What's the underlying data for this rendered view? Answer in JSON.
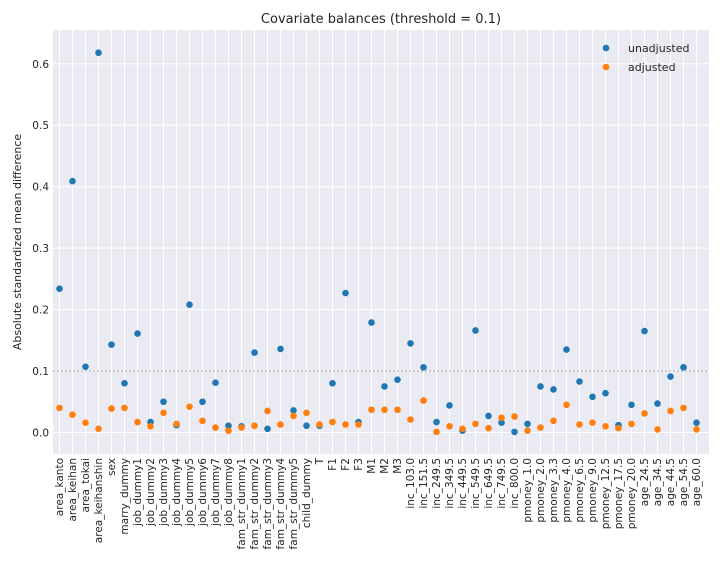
{
  "chart_data": {
    "type": "scatter",
    "title": "Covariate balances (threshold = 0.1)",
    "xlabel": "",
    "ylabel": "Absolute standardized mean difference",
    "ylim": [
      -0.035,
      0.655
    ],
    "yticks": [
      0.0,
      0.1,
      0.2,
      0.3,
      0.4,
      0.5,
      0.6
    ],
    "ytick_labels": [
      "0.0",
      "0.1",
      "0.2",
      "0.3",
      "0.4",
      "0.5",
      "0.6"
    ],
    "threshold": 0.1,
    "grid": true,
    "legend_position": "top-right",
    "categories": [
      "area_kanto",
      "area_keihan",
      "area_tokai",
      "area_keihanshin",
      "sex",
      "marry_dummy",
      "job_dummy1",
      "job_dummy2",
      "job_dummy3",
      "job_dummy4",
      "job_dummy5",
      "job_dummy6",
      "job_dummy7",
      "job_dummy8",
      "fam_str_dummy1",
      "fam_str_dummy2",
      "fam_str_dummy3",
      "fam_str_dummy4",
      "fam_str_dummy5",
      "child_dummy",
      "T",
      "F1",
      "F2",
      "F3",
      "M1",
      "M2",
      "M3",
      "inc_103.0",
      "inc_151.5",
      "inc_249.5",
      "inc_349.5",
      "inc_449.5",
      "inc_549.5",
      "inc_649.5",
      "inc_749.5",
      "inc_800.0",
      "pmoney_1.0",
      "pmoney_2.0",
      "pmoney_3.3",
      "pmoney_4.0",
      "pmoney_6.5",
      "pmoney_9.0",
      "pmoney_12.5",
      "pmoney_17.5",
      "pmoney_20.0",
      "age_24.5",
      "age_34.5",
      "age_44.5",
      "age_54.5",
      "age_60.0"
    ],
    "series": [
      {
        "name": "unadjusted",
        "color": "#1f77b4",
        "values": [
          0.234,
          0.409,
          0.107,
          0.618,
          0.143,
          0.08,
          0.161,
          0.017,
          0.05,
          0.012,
          0.208,
          0.05,
          0.081,
          0.011,
          0.01,
          0.13,
          0.006,
          0.136,
          0.036,
          0.011,
          0.011,
          0.08,
          0.227,
          0.017,
          0.179,
          0.075,
          0.086,
          0.145,
          0.106,
          0.017,
          0.044,
          0.003,
          0.166,
          0.027,
          0.016,
          0.001,
          0.014,
          0.075,
          0.07,
          0.135,
          0.083,
          0.058,
          0.064,
          0.012,
          0.045,
          0.165,
          0.047,
          0.091,
          0.106,
          0.016
        ]
      },
      {
        "name": "adjusted",
        "color": "#ff7f0e",
        "values": [
          0.04,
          0.029,
          0.016,
          0.006,
          0.039,
          0.04,
          0.017,
          0.01,
          0.032,
          0.014,
          0.042,
          0.019,
          0.008,
          0.003,
          0.008,
          0.011,
          0.035,
          0.013,
          0.027,
          0.032,
          0.013,
          0.017,
          0.013,
          0.013,
          0.037,
          0.037,
          0.037,
          0.021,
          0.052,
          0.001,
          0.01,
          0.006,
          0.014,
          0.007,
          0.024,
          0.026,
          0.003,
          0.008,
          0.019,
          0.045,
          0.013,
          0.016,
          0.01,
          0.007,
          0.014,
          0.031,
          0.005,
          0.035,
          0.04,
          0.005
        ]
      }
    ]
  }
}
